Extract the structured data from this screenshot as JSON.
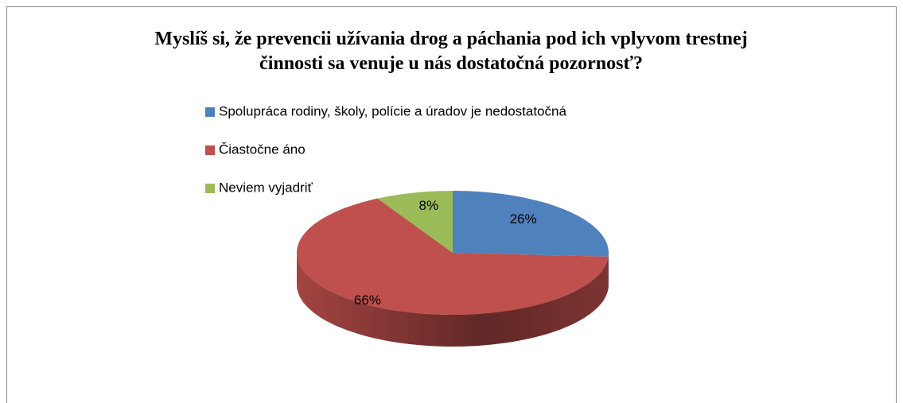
{
  "chart_data": {
    "type": "pie",
    "title": "Myslíš si, že prevencii užívania drog a páchania pod ich vplyvom trestnej činnosti sa venuje u nás dostatočná pozornosť?",
    "categories": [
      "Spolupráca rodiny, školy, polície a úradov je nedostatočná",
      "Čiastočne áno",
      "Neviem vyjadriť"
    ],
    "values": [
      26,
      66,
      8
    ],
    "value_labels": [
      "26%",
      "66%",
      "8%"
    ],
    "colors": [
      "#4f81bd",
      "#c0504d",
      "#9bbb59"
    ]
  }
}
